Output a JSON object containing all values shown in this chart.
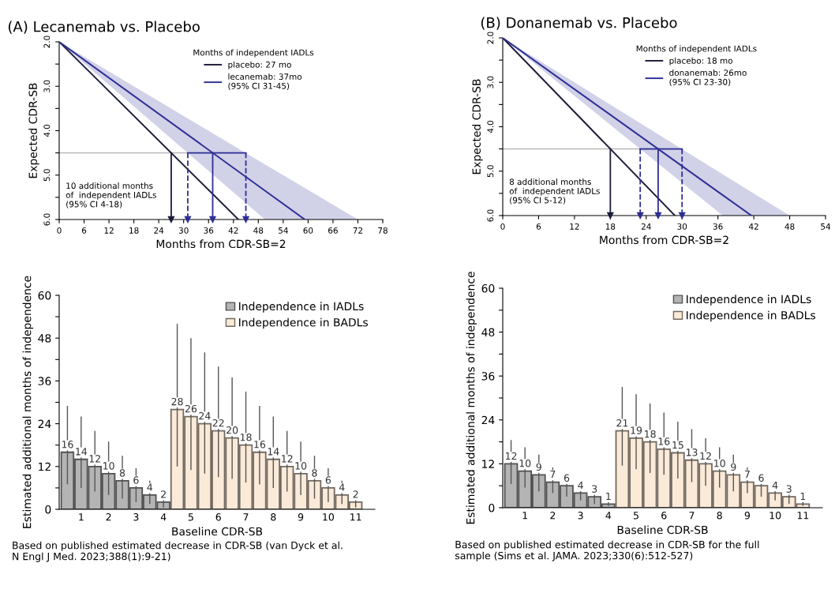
{
  "chart_data": [
    {
      "type": "line",
      "title": "(A) Lecanemab vs. Placebo",
      "xlabel": "Months from CDR-SB=2",
      "ylabel": "Expected CDR-SB",
      "legend_title": "Months of independent IADLs",
      "legend": "top",
      "xlim": [
        0,
        78
      ],
      "xticks": [
        0,
        6,
        12,
        18,
        24,
        30,
        36,
        42,
        48,
        54,
        60,
        66,
        72,
        78
      ],
      "ylim": [
        6,
        2
      ],
      "yticks": [
        {
          "value": 2,
          "label": "2.0"
        },
        {
          "value": 2.5,
          "label": null
        },
        {
          "value": 3,
          "label": "3.0"
        },
        {
          "value": 3.5,
          "label": null
        },
        {
          "value": 4,
          "label": "4.0"
        },
        {
          "value": 4.5,
          "label": null
        },
        {
          "value": 5,
          "label": "5.0"
        },
        {
          "value": 5.5,
          "label": null
        },
        {
          "value": 6,
          "label": "6.0"
        }
      ],
      "series": [
        {
          "name": "placebo: 27 mo",
          "color": "#1c1c3a",
          "x": [
            0,
            43.2
          ],
          "values": [
            2,
            6
          ]
        },
        {
          "name": "lecanemab: 37mo\n(95% CI 31-45)",
          "color": "#2e2e96",
          "x": [
            0,
            49.6,
            59.2,
            72
          ],
          "values": [
            2,
            5.35,
            6,
            null
          ],
          "lower": [
            2,
            4.76,
            5.29,
            6
          ],
          "upper": [
            2,
            6,
            6,
            6
          ]
        },
        {
          "color": "#2e2e96",
          "x": [
            31,
            45
          ],
          "values": [
            4.5,
            4.5
          ]
        }
      ],
      "ref_lines": [
        {
          "axis": "y",
          "value": 4.5,
          "color": "#b0b0b0",
          "line_style": "solid"
        },
        {
          "axis": "x",
          "value": 27,
          "color": "#1c1c3a",
          "line_style": "solid"
        },
        {
          "axis": "x",
          "value": 31,
          "color": "#2e2e96",
          "line_style": "dashed"
        },
        {
          "axis": "x",
          "value": 37,
          "color": "#2e2e96",
          "line_style": "solid"
        },
        {
          "axis": "x",
          "value": 45,
          "color": "#2e2e96",
          "line_style": "dashed"
        }
      ],
      "annotations": [
        "10 additional months\nof  independent IADLs\n(95% CI 4-18)"
      ]
    },
    {
      "type": "line",
      "title": "(B) Donanemab vs. Placebo",
      "xlabel": "Months from CDR-SB=2",
      "ylabel": "Expected CDR-SB",
      "legend_title": "Months of independent IADLs",
      "legend": "top",
      "xlim": [
        0,
        54
      ],
      "xticks": [
        0,
        6,
        12,
        18,
        24,
        30,
        36,
        42,
        48,
        54
      ],
      "ylim": [
        6,
        2
      ],
      "yticks": [
        {
          "value": 2,
          "label": "2.0"
        },
        {
          "value": 2.5,
          "label": null
        },
        {
          "value": 3,
          "label": "3.0"
        },
        {
          "value": 3.5,
          "label": null
        },
        {
          "value": 4,
          "label": "4.0"
        },
        {
          "value": 4.5,
          "label": null
        },
        {
          "value": 5,
          "label": "5.0"
        },
        {
          "value": 5.5,
          "label": null
        },
        {
          "value": 6,
          "label": "6.0"
        }
      ],
      "series": [
        {
          "name": "placebo: 18 mo",
          "color": "#1c1c3a",
          "x": [
            0,
            28.8
          ],
          "values": [
            2,
            6
          ]
        },
        {
          "name": "donanemab: 26mo\n(95% CI 23-30)",
          "color": "#2e2e96",
          "x": [
            0,
            36.8,
            41.6,
            48
          ],
          "values": [
            2,
            5.54,
            6,
            null
          ],
          "lower": [
            2,
            5.07,
            5.47,
            6
          ],
          "upper": [
            2,
            6,
            6,
            6
          ]
        },
        {
          "color": "#2e2e96",
          "x": [
            23,
            30
          ],
          "values": [
            4.5,
            4.5
          ]
        }
      ],
      "ref_lines": [
        {
          "axis": "y",
          "value": 4.5,
          "color": "#b0b0b0",
          "line_style": "solid"
        },
        {
          "axis": "x",
          "value": 18,
          "color": "#1c1c3a",
          "line_style": "solid"
        },
        {
          "axis": "x",
          "value": 23,
          "color": "#2e2e96",
          "line_style": "dashed"
        },
        {
          "axis": "x",
          "value": 26,
          "color": "#2e2e96",
          "line_style": "solid"
        },
        {
          "axis": "x",
          "value": 30,
          "color": "#2e2e96",
          "line_style": "dashed"
        }
      ],
      "annotations": [
        "8 additional months\nof  independent IADLs\n(95% CI 5-12)"
      ]
    },
    {
      "type": "bar",
      "xlabel": "Baseline CDR-SB",
      "ylabel": "Estimated additional months of independence",
      "legend": "top right",
      "data_labels": true,
      "ylim": [
        0,
        60
      ],
      "yticks": [
        0,
        {
          "value": 6,
          "label": null
        },
        12,
        {
          "value": 18,
          "label": null
        },
        24,
        {
          "value": 30,
          "label": null
        },
        36,
        {
          "value": 42,
          "label": null
        },
        48,
        {
          "value": 54,
          "label": null
        },
        60
      ],
      "categories": [
        null,
        "1",
        null,
        "2",
        null,
        "3",
        null,
        "4",
        null,
        "5",
        null,
        "6",
        null,
        "7",
        null,
        "8",
        null,
        "9",
        null,
        "10",
        null,
        "11"
      ],
      "series": [
        {
          "name": "Independence in IADLs",
          "color": "#b4b4b4",
          "values": [
            16,
            14,
            12,
            10,
            8,
            6,
            4,
            2,
            null,
            null,
            null,
            null,
            null,
            null,
            null,
            null,
            null,
            null,
            null,
            null,
            null,
            null
          ],
          "errors": [
            [
              7,
              29
            ],
            [
              6,
              26
            ],
            [
              5,
              22
            ],
            [
              4,
              19
            ],
            [
              3,
              15
            ],
            [
              2,
              11.5
            ],
            [
              1.5,
              8
            ],
            [
              0.5,
              4
            ],
            null,
            null,
            null,
            null,
            null,
            null,
            null,
            null,
            null,
            null,
            null,
            null,
            null,
            null
          ]
        },
        {
          "name": "Independence in BADLs",
          "color": "#fbead8",
          "values": [
            null,
            null,
            null,
            null,
            null,
            null,
            null,
            null,
            28,
            26,
            24,
            22,
            20,
            18,
            16,
            14,
            12,
            10,
            8,
            6,
            4,
            2
          ],
          "errors": [
            null,
            null,
            null,
            null,
            null,
            null,
            null,
            null,
            [
              12,
              52
            ],
            [
              11,
              48
            ],
            [
              10,
              44
            ],
            [
              9,
              40
            ],
            [
              8.5,
              37
            ],
            [
              7.5,
              33
            ],
            [
              7,
              29
            ],
            [
              6,
              26
            ],
            [
              5,
              22
            ],
            [
              4,
              19
            ],
            [
              3,
              15
            ],
            [
              2,
              11.5
            ],
            [
              1.5,
              8
            ],
            [
              0.5,
              4
            ]
          ]
        }
      ],
      "annotations": [
        "Based on published estimated decrease in CDR-SB (van Dyck et al.\nN Engl J Med. 2023;388(1):9-21)"
      ]
    },
    {
      "type": "bar",
      "xlabel": "Baseline CDR-SB",
      "ylabel": "Estimated additional months of independence",
      "legend": "top right",
      "data_labels": true,
      "ylim": [
        0,
        60
      ],
      "yticks": [
        0,
        {
          "value": 6,
          "label": null
        },
        12,
        {
          "value": 18,
          "label": null
        },
        24,
        {
          "value": 30,
          "label": null
        },
        36,
        {
          "value": 42,
          "label": null
        },
        48,
        {
          "value": 54,
          "label": null
        },
        60
      ],
      "categories": [
        null,
        "1",
        null,
        "2",
        null,
        "3",
        null,
        "4",
        null,
        "5",
        null,
        "6",
        null,
        "7",
        null,
        "8",
        null,
        "9",
        null,
        "10",
        null,
        "11"
      ],
      "series": [
        {
          "name": "Independence in IADLs",
          "color": "#b4b4b4",
          "values": [
            12,
            10,
            9,
            7,
            6,
            4,
            3,
            1,
            null,
            null,
            null,
            null,
            null,
            null,
            null,
            null,
            null,
            null,
            null,
            null,
            null,
            null
          ],
          "errors": [
            [
              6.5,
              18.5
            ],
            [
              5.5,
              16.5
            ],
            [
              4.5,
              14.5
            ],
            [
              4,
              11
            ],
            [
              3,
              9
            ],
            [
              2,
              7
            ],
            [
              1,
              5
            ],
            [
              0.5,
              3
            ],
            null,
            null,
            null,
            null,
            null,
            null,
            null,
            null,
            null,
            null,
            null,
            null,
            null,
            null
          ]
        },
        {
          "name": "Independence in BADLs",
          "color": "#fbead8",
          "values": [
            null,
            null,
            null,
            null,
            null,
            null,
            null,
            null,
            21,
            19,
            18,
            16,
            15,
            13,
            12,
            10,
            9,
            7,
            6,
            4,
            3,
            1
          ],
          "errors": [
            null,
            null,
            null,
            null,
            null,
            null,
            null,
            null,
            [
              11.5,
              33
            ],
            [
              10.5,
              31
            ],
            [
              9.5,
              28.5
            ],
            [
              9,
              26
            ],
            [
              8,
              23.5
            ],
            [
              7,
              21.5
            ],
            [
              6,
              19
            ],
            [
              5.5,
              16.5
            ],
            [
              4.5,
              14.5
            ],
            [
              4,
              11
            ],
            [
              3,
              9
            ],
            [
              2,
              7
            ],
            [
              1,
              5
            ],
            [
              0.5,
              3
            ]
          ]
        }
      ],
      "annotations": [
        "Based on published estimated decrease in CDR-SB for the full\nsample (Sims et al. JAMA. 2023;330(6):512-527)"
      ]
    }
  ]
}
